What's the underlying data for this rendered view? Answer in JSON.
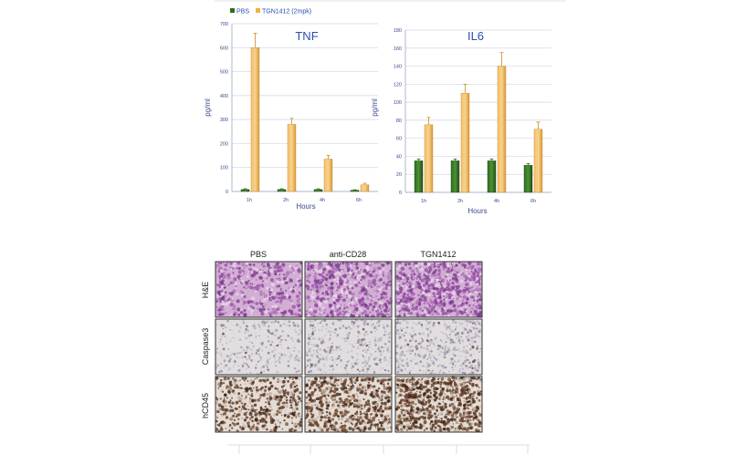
{
  "legend": [
    {
      "label": "PBS",
      "color": "#2e6b1f"
    },
    {
      "label": "TGN1412 (2mpk)",
      "color": "#f0b04a"
    }
  ],
  "chart_data": [
    {
      "type": "bar",
      "title": "TNF",
      "xlabel": "Hours",
      "ylabel": "pg/ml",
      "categories": [
        "1h",
        "2h",
        "4h",
        "6h"
      ],
      "yticks": [
        "0",
        "100",
        "200",
        "300",
        "400",
        "500",
        "600",
        "700"
      ],
      "ylim": [
        0,
        700
      ],
      "series": [
        {
          "name": "PBS",
          "values": [
            8,
            8,
            8,
            5
          ],
          "errors": [
            3,
            3,
            3,
            2
          ]
        },
        {
          "name": "TGN1412 (2mpk)",
          "values": [
            600,
            280,
            135,
            28
          ],
          "errors": [
            60,
            25,
            15,
            6
          ]
        }
      ],
      "grid": true,
      "legend_position": "top-left"
    },
    {
      "type": "bar",
      "title": "IL6",
      "xlabel": "Hours",
      "ylabel": "pg/ml",
      "categories": [
        "1h",
        "2h",
        "4h",
        "6h"
      ],
      "yticks": [
        "0",
        "20",
        "40",
        "60",
        "80",
        "100",
        "120",
        "140",
        "160",
        "180"
      ],
      "ylim": [
        0,
        180
      ],
      "series": [
        {
          "name": "PBS",
          "values": [
            35,
            35,
            35,
            30
          ],
          "errors": [
            2,
            2,
            2,
            2
          ]
        },
        {
          "name": "TGN1412 (2mpk)",
          "values": [
            75,
            110,
            140,
            70
          ],
          "errors": [
            8,
            10,
            15,
            8
          ]
        }
      ],
      "grid": true
    }
  ],
  "histology": {
    "columns": [
      "PBS",
      "anti-CD28",
      "TGN1412"
    ],
    "rows": [
      "H&E",
      "Caspase3",
      "hCD45"
    ]
  },
  "colors": {
    "axis_text": "#3a4a8a",
    "title": "#2b4fb0",
    "gridline": "#cfd6e8"
  }
}
